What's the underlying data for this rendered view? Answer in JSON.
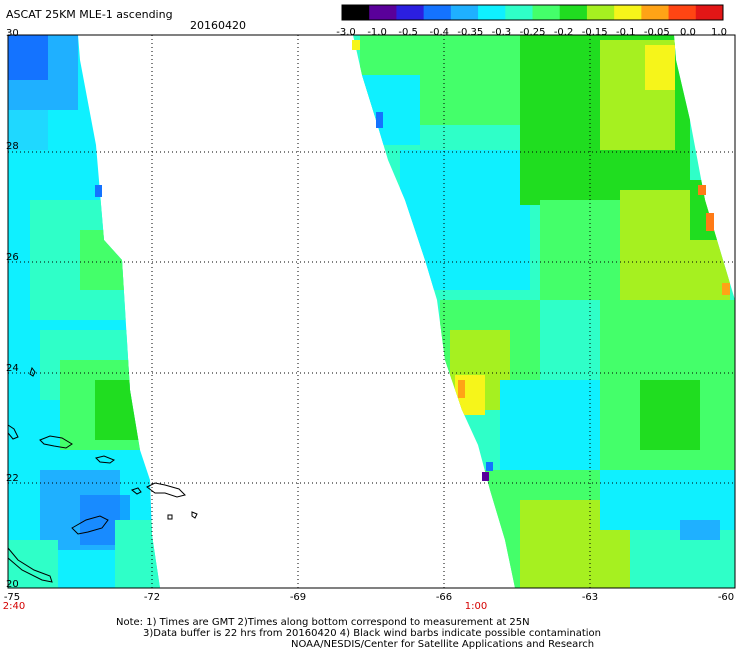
{
  "title": "ASCAT 25KM MLE-1 ascending",
  "date": "20160420",
  "colorbar": {
    "labels": [
      "-3.0",
      "-1.0",
      "-0.5",
      "-0.4",
      "-0.35",
      "-0.3",
      "-0.25",
      "-0.2",
      "-0.15",
      "-0.1",
      "-0.05",
      "0.0",
      "1.0"
    ],
    "colors": [
      "#000000",
      "#5a009a",
      "#2b1fe0",
      "#1473ff",
      "#1fb0ff",
      "#0ff0ff",
      "#2fffc8",
      "#44ff6a",
      "#20dd20",
      "#a6f020",
      "#f6f51a",
      "#ffa316",
      "#ff4513",
      "#e21616"
    ]
  },
  "axes": {
    "y_labels": [
      "30",
      "28",
      "26",
      "24",
      "22",
      "20"
    ],
    "x_labels": [
      "-75",
      "-72",
      "-69",
      "-66",
      "-63",
      "-60"
    ],
    "times": [
      "2:40",
      "1:00"
    ]
  },
  "notes": [
    "Note: 1) Times are GMT 2)Times along bottom correspond to measurement at 25N",
    "3)Data buffer is 22 hrs from 20160420 4) Black wind barbs indicate possible contamination",
    "NOAA/NESDIS/Center for Satellite Applications and Research"
  ],
  "map": {
    "lon_range": [
      -75,
      -60
    ],
    "lat_range": [
      20,
      30
    ],
    "dominant_colors": {
      "cyan": "#0ff0ff",
      "aqua_green": "#2fffc8",
      "green": "#44ff6a",
      "dark_green": "#20dd20",
      "yellow": "#f6f51a",
      "blue": "#1473ff"
    }
  }
}
